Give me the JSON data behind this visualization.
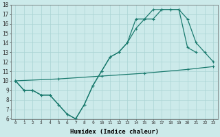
{
  "xlabel": "Humidex (Indice chaleur)",
  "bg_color": "#cceaea",
  "line_color": "#1a7a6e",
  "grid_color": "#aad4d4",
  "xlim": [
    -0.5,
    23.5
  ],
  "ylim": [
    6,
    18
  ],
  "xticks": [
    0,
    1,
    2,
    3,
    4,
    5,
    6,
    7,
    8,
    9,
    10,
    11,
    12,
    13,
    14,
    15,
    16,
    17,
    18,
    19,
    20,
    21,
    22,
    23
  ],
  "yticks": [
    6,
    7,
    8,
    9,
    10,
    11,
    12,
    13,
    14,
    15,
    16,
    17,
    18
  ],
  "line1_x": [
    0,
    1,
    2,
    3,
    4,
    5,
    6,
    7,
    8,
    9,
    10,
    11,
    12,
    13,
    14,
    15,
    16,
    17,
    18,
    19,
    20,
    21,
    22,
    23
  ],
  "line1_y": [
    10,
    9,
    9,
    8.5,
    8.5,
    7.5,
    6.5,
    6,
    7.5,
    9.5,
    11,
    12.5,
    13,
    14,
    15.5,
    16.5,
    16.5,
    17.5,
    17.5,
    17.5,
    16.5,
    14,
    13,
    12
  ],
  "line2_x": [
    0,
    1,
    2,
    3,
    4,
    5,
    6,
    7,
    8,
    9,
    10,
    11,
    12,
    13,
    14,
    15,
    16,
    17,
    18,
    19,
    20,
    21
  ],
  "line2_y": [
    10,
    9,
    9,
    8.5,
    8.5,
    7.5,
    6.5,
    6,
    7.5,
    9.5,
    11,
    12.5,
    13,
    14,
    16.5,
    16.5,
    17.5,
    17.5,
    17.5,
    17.5,
    13.5,
    13
  ],
  "line3_x": [
    0,
    5,
    10,
    15,
    20,
    23
  ],
  "line3_y": [
    10,
    10.2,
    10.5,
    10.8,
    11.2,
    11.5
  ]
}
